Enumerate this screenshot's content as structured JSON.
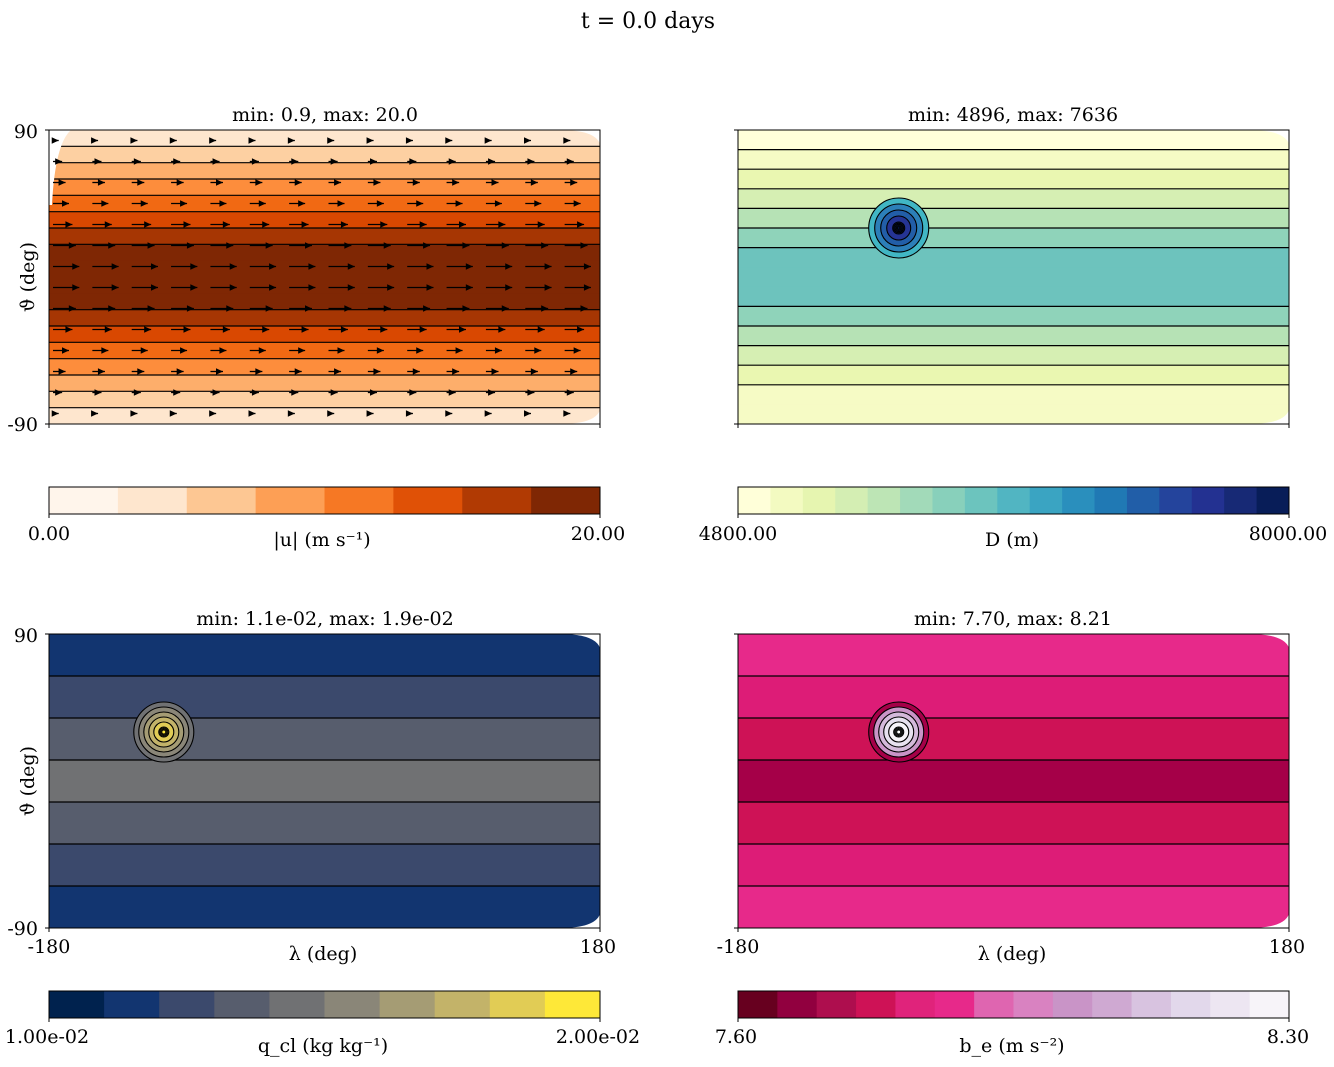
{
  "figure": {
    "suptitle": "t = 0.0 days"
  },
  "chart_data": [
    {
      "type": "heatmap",
      "panel": "top-left",
      "title": "min: 0.9, max: 20.0",
      "xlabel": "",
      "ylabel": "ϑ (deg)",
      "xlim": [
        -180,
        180
      ],
      "ylim": [
        -90,
        90
      ],
      "xticklabels": [
        "",
        ""
      ],
      "yticklabels": [
        "90",
        "-90"
      ],
      "band_colors": [
        "#fff5eb",
        "#fee6ce",
        "#fdd0a2",
        "#fdae6b",
        "#fd8d3c",
        "#f16913",
        "#d94801",
        "#a63603",
        "#7f2704"
      ],
      "bands_from_top": [
        1,
        2,
        3,
        4,
        5,
        6,
        7,
        8,
        8,
        8,
        8,
        7,
        6,
        5,
        4,
        3,
        2,
        1
      ],
      "arrows": true,
      "colorbar": {
        "label": "|u| (m s⁻¹)",
        "min_label": "0.00",
        "max_label": "20.00",
        "vmin": 0.0,
        "vmax": 20.0,
        "colors": [
          "#fff5eb",
          "#fee6ce",
          "#fdc793",
          "#fd9f55",
          "#f67824",
          "#e05106",
          "#b13a03",
          "#7f2704"
        ]
      }
    },
    {
      "type": "heatmap",
      "panel": "top-right",
      "title": "min: 4896, max: 7636",
      "xlabel": "",
      "ylabel": "",
      "xlim": [
        -180,
        180
      ],
      "ylim": [
        -90,
        90
      ],
      "band_colors": [
        "#ffffd9",
        "#f6fbc5",
        "#eaf7b1",
        "#d6efb3",
        "#b6e2b5",
        "#8fd3ba",
        "#6dc3bd",
        "#4db3c2"
      ],
      "bands_from_top": [
        0,
        1,
        2,
        3,
        4,
        5,
        6,
        6,
        6,
        5,
        4,
        3,
        2,
        1,
        1
      ],
      "blob": {
        "lon": -75,
        "lat": 30,
        "colors": [
          "#41b6c4",
          "#2c7fb8",
          "#225ea8",
          "#253494",
          "#081d58"
        ]
      },
      "colorbar": {
        "label": "D (m)",
        "min_label": "4800.00",
        "max_label": "8000.00",
        "vmin": 4800.0,
        "vmax": 8000.0,
        "colors": [
          "#ffffd9",
          "#f3fac1",
          "#e6f5b0",
          "#d4eeb3",
          "#bde5b5",
          "#a2dab9",
          "#88d0bb",
          "#6cc4be",
          "#51b5c2",
          "#3aa4c2",
          "#2a8fbd",
          "#2079b4",
          "#215ea8",
          "#24449c",
          "#233191",
          "#172975",
          "#081d58"
        ]
      }
    },
    {
      "type": "heatmap",
      "panel": "bottom-left",
      "title": "min: 1.1e-02, max: 1.9e-02",
      "xlabel": "λ (deg)",
      "ylabel": "ϑ (deg)",
      "xlim": [
        -180,
        180
      ],
      "ylim": [
        -90,
        90
      ],
      "xticklabels": [
        "-180",
        "180"
      ],
      "yticklabels": [
        "90",
        "-90"
      ],
      "band_colors": [
        "#00224e",
        "#123570",
        "#3b496c",
        "#575d6d",
        "#707173",
        "#8a8678",
        "#a59c74",
        "#c3b369",
        "#e1cc55",
        "#fee838"
      ],
      "bands_from_top": [
        1,
        2,
        3,
        4,
        3,
        2,
        1
      ],
      "blob": {
        "lon": -105,
        "lat": 30,
        "colors": [
          "#707173",
          "#8a8678",
          "#a59c74",
          "#c3b369",
          "#e1cc55",
          "#fee838"
        ]
      },
      "colorbar": {
        "label": "q_cl (kg kg⁻¹)",
        "min_label": "1.00e-02",
        "max_label": "2.00e-02",
        "vmin": 0.01,
        "vmax": 0.02,
        "colors": [
          "#00224e",
          "#123570",
          "#3b496c",
          "#575d6d",
          "#707173",
          "#8a8678",
          "#a59c74",
          "#c3b369",
          "#e1cc55",
          "#fee838"
        ]
      }
    },
    {
      "type": "heatmap",
      "panel": "bottom-right",
      "title": "min: 7.70, max: 8.21",
      "xlabel": "λ (deg)",
      "ylabel": "",
      "xlim": [
        -180,
        180
      ],
      "ylim": [
        -90,
        90
      ],
      "xticklabels": [
        "-180",
        "180"
      ],
      "band_colors": [
        "#e7298a",
        "#dd1c77",
        "#ce1256",
        "#a50048"
      ],
      "bands_from_top": [
        0,
        1,
        2,
        3,
        2,
        1,
        0
      ],
      "blob": {
        "lon": -75,
        "lat": 30,
        "colors": [
          "#a50048",
          "#c994c7",
          "#d4b9da",
          "#e7e1ef",
          "#f7f4f9",
          "#ffffff"
        ]
      },
      "colorbar": {
        "label": "b_e (m s⁻²)",
        "min_label": "7.60",
        "max_label": "8.30",
        "vmin": 7.6,
        "vmax": 8.3,
        "colors": [
          "#67001f",
          "#91003f",
          "#ae0e4e",
          "#ce1256",
          "#e0237b",
          "#e7298a",
          "#df65b0",
          "#d982c1",
          "#c994c7",
          "#cfa9d2",
          "#d8c3e0",
          "#e2d8eb",
          "#ede6f2",
          "#f7f4f9"
        ]
      }
    }
  ]
}
